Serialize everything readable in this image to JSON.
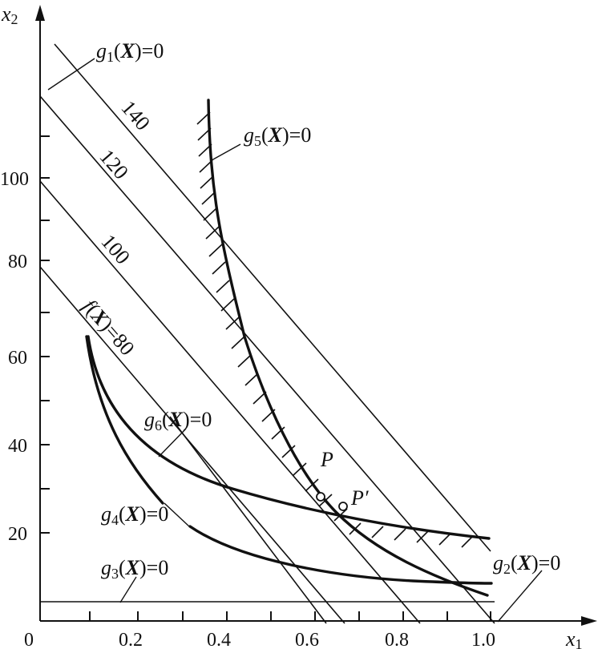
{
  "axes": {
    "x_axis_label": "x",
    "x_axis_sub": "1",
    "y_axis_label": "x",
    "y_axis_sub": "2",
    "origin_label": "0",
    "x_ticks": [
      "0.2",
      "0.4",
      "0.6",
      "0.8",
      "1.0"
    ],
    "y_ticks": [
      "20",
      "40",
      "60",
      "80",
      "100"
    ]
  },
  "contours": {
    "c140": "140",
    "c120": "120",
    "c100": "100",
    "f80_prefix": "f",
    "f80_X": "X",
    "f80_suffix": ")=80",
    "f80_open": "("
  },
  "constraints": {
    "g": "g",
    "X": "X",
    "open": "(",
    "close": ")=0",
    "g1_sub": "1",
    "g2_sub": "2",
    "g3_sub": "3",
    "g4_sub": "4",
    "g5_sub": "5",
    "g6_sub": "6"
  },
  "points": {
    "P": "P",
    "P_prime": "P′"
  }
}
